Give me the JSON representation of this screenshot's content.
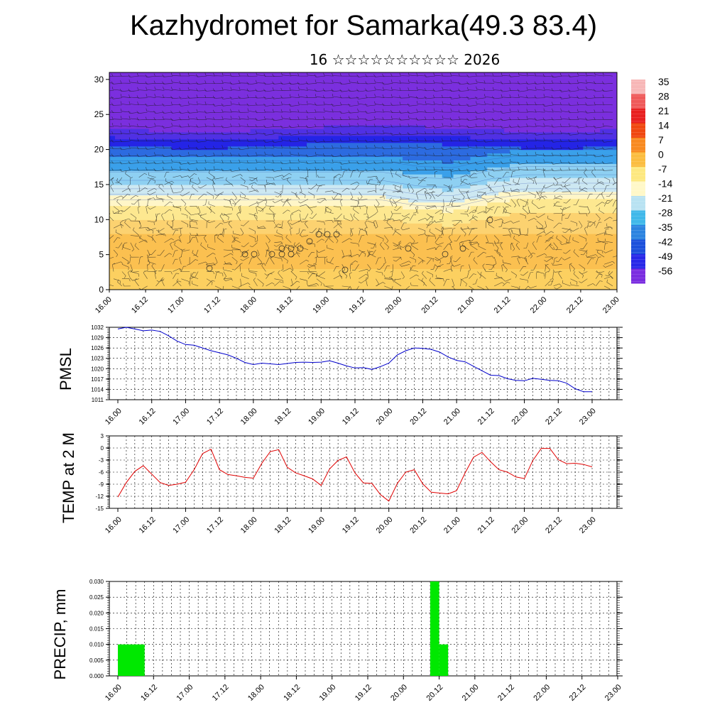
{
  "header": {
    "title": "Kazhydromet for Samarka(49.3 83.4)",
    "subtitle": "16 ☆☆☆☆☆☆☆☆☆☆ 2026"
  },
  "time_labels": [
    "16.00",
    "16.12",
    "17.00",
    "17.12",
    "18.00",
    "18.12",
    "19.00",
    "19.12",
    "20.00",
    "20.12",
    "21.00",
    "21.12",
    "22.00",
    "22.12",
    "23.00"
  ],
  "chart_data": [
    {
      "type": "heatmap",
      "name": "cross-section",
      "x": [
        "16.00",
        "16.12",
        "17.00",
        "17.12",
        "18.00",
        "18.12",
        "19.00",
        "19.12",
        "20.00",
        "20.12",
        "21.00",
        "21.12",
        "22.00",
        "22.12",
        "23.00"
      ],
      "yticks": [
        0,
        5,
        10,
        15,
        20,
        25,
        30
      ],
      "ylim": [
        0,
        31
      ],
      "colorbar": {
        "labels": [
          "35",
          "28",
          "21",
          "14",
          "7",
          "0",
          "-7",
          "-14",
          "-21",
          "-28",
          "-35",
          "-42",
          "-49",
          "-56"
        ],
        "colors": [
          "#f7b7b7",
          "#ef5a5a",
          "#e82020",
          "#f04810",
          "#f88a20",
          "#fbbd40",
          "#fde880",
          "#fff8c8",
          "#b8e2f2",
          "#40b8ea",
          "#2c84e0",
          "#1c50dc",
          "#2828e8",
          "#7a2ce0"
        ]
      },
      "wind_barbs": true
    },
    {
      "type": "line",
      "name": "pmsl",
      "ylabel": "PMSL",
      "yticks": [
        1011,
        1014,
        1017,
        1020,
        1023,
        1026,
        1029,
        1032
      ],
      "ylim": [
        1011,
        1032
      ],
      "color": "#0000cc",
      "values": [
        1031.5,
        1032,
        1031.5,
        1031,
        1031.2,
        1030.8,
        1029.5,
        1028,
        1027,
        1026.8,
        1026,
        1025.2,
        1024.6,
        1024,
        1023,
        1021.8,
        1021.2,
        1021.6,
        1021.4,
        1021.2,
        1021.5,
        1021.8,
        1021.9,
        1021.8,
        1021.9,
        1022.3,
        1021.6,
        1020.8,
        1020.2,
        1020.3,
        1019.8,
        1020.6,
        1021.6,
        1024,
        1025.2,
        1026,
        1025.9,
        1025.6,
        1024.8,
        1023.4,
        1022.4,
        1022,
        1020.7,
        1019.4,
        1018.1,
        1018,
        1017.1,
        1016.6,
        1016.5,
        1017.2,
        1016.9,
        1016.6,
        1016.5,
        1015.8,
        1014.2,
        1013.3,
        1013.3
      ]
    },
    {
      "type": "line",
      "name": "temp",
      "ylabel": "TEMP at 2 M",
      "yticks": [
        -15,
        -12,
        -9,
        -6,
        -3,
        0,
        3
      ],
      "ylim": [
        -15,
        3
      ],
      "color": "#e00000",
      "values": [
        -12.2,
        -8.6,
        -5.8,
        -4.4,
        -6.5,
        -8.6,
        -9.3,
        -9,
        -8.5,
        -5.4,
        -1.4,
        -0.3,
        -5.4,
        -6.6,
        -6.9,
        -7.3,
        -7.5,
        -3.8,
        -0.9,
        -0.4,
        -4.8,
        -6.2,
        -6.9,
        -7.7,
        -9.3,
        -5.2,
        -3.1,
        -2.2,
        -6.2,
        -8.7,
        -8.8,
        -11.6,
        -13.2,
        -8.8,
        -6,
        -5.4,
        -8.9,
        -11,
        -11.2,
        -11.4,
        -10.6,
        -6.2,
        -2.3,
        -1.1,
        -3.4,
        -5.4,
        -6,
        -7.2,
        -7.6,
        -3.1,
        -0.1,
        -0.1,
        -2.9,
        -3.9,
        -3.8,
        -4.1,
        -4.7
      ]
    },
    {
      "type": "bar",
      "name": "precip",
      "ylabel": "PRECIP, mm",
      "yticks": [
        "0.000",
        "0.005",
        "0.010",
        "0.015",
        "0.020",
        "0.025",
        "0.030"
      ],
      "ylim": [
        0,
        0.03
      ],
      "color": "#00e800",
      "bars": [
        {
          "start": "16.00",
          "hours": 9,
          "value": 0.01
        },
        {
          "start": "20.09",
          "hours": 3,
          "value": 0.03
        },
        {
          "start": "20.12",
          "hours": 3,
          "value": 0.01
        }
      ]
    }
  ]
}
